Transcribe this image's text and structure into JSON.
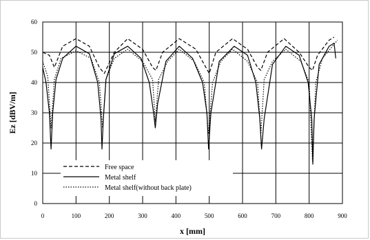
{
  "chart_data": {
    "type": "line",
    "title": "",
    "xlabel": "x [mm]",
    "ylabel": "Ez [dBV/m]",
    "xlim": [
      0,
      900
    ],
    "ylim": [
      0,
      60
    ],
    "x_ticks": [
      0,
      100,
      200,
      300,
      400,
      500,
      600,
      700,
      800,
      900
    ],
    "y_ticks": [
      0,
      10,
      20,
      30,
      40,
      50,
      60
    ],
    "grid": true,
    "legend_position": "bottom-left",
    "series": [
      {
        "name": "Free space",
        "style": "dashed",
        "x": [
          0,
          20,
          35,
          60,
          100,
          140,
          170,
          185,
          215,
          255,
          300,
          330,
          340,
          360,
          410,
          460,
          490,
          500,
          520,
          570,
          615,
          645,
          655,
          675,
          725,
          770,
          800,
          810,
          825,
          860,
          875
        ],
        "y": [
          50,
          49,
          45,
          52,
          54.5,
          52,
          45,
          43,
          50,
          54.5,
          51,
          45,
          44,
          50,
          54.5,
          51,
          45,
          43,
          50,
          54.5,
          51,
          45,
          44,
          50,
          54.5,
          50,
          45,
          44,
          49,
          54,
          55
        ]
      },
      {
        "name": "Metal shelf",
        "style": "solid",
        "x": [
          0,
          10,
          20,
          25,
          30,
          40,
          60,
          100,
          140,
          165,
          175,
          178,
          182,
          190,
          215,
          255,
          295,
          320,
          333,
          338,
          345,
          370,
          410,
          450,
          480,
          493,
          498,
          505,
          530,
          575,
          615,
          640,
          652,
          657,
          665,
          690,
          730,
          770,
          797,
          808,
          811,
          815,
          830,
          860,
          875,
          880
        ],
        "y": [
          45,
          40,
          30,
          18,
          30,
          41,
          48,
          52,
          49.5,
          40,
          28,
          18,
          28,
          41,
          49.5,
          52,
          48,
          40,
          30,
          25,
          33,
          47,
          52,
          48,
          40,
          30,
          18,
          30,
          47,
          52,
          49,
          40,
          28,
          18,
          28,
          46,
          52,
          49,
          40,
          28,
          13,
          28,
          46,
          52,
          53,
          48
        ]
      },
      {
        "name": "Metal shelf(without back plate)",
        "style": "dotted",
        "x": [
          0,
          15,
          25,
          35,
          55,
          100,
          145,
          170,
          180,
          190,
          215,
          255,
          300,
          330,
          338,
          348,
          375,
          410,
          455,
          485,
          498,
          510,
          535,
          570,
          615,
          645,
          655,
          665,
          690,
          730,
          775,
          800,
          810,
          820,
          840,
          870,
          885
        ],
        "y": [
          47,
          42,
          25,
          41,
          48,
          50.5,
          48,
          40,
          25,
          41,
          48,
          51,
          47,
          41,
          27,
          41,
          47,
          51,
          47,
          40,
          23,
          40,
          47,
          51,
          47,
          40,
          23,
          41,
          47,
          51,
          47,
          40,
          14,
          40,
          48,
          52,
          54
        ]
      }
    ]
  }
}
